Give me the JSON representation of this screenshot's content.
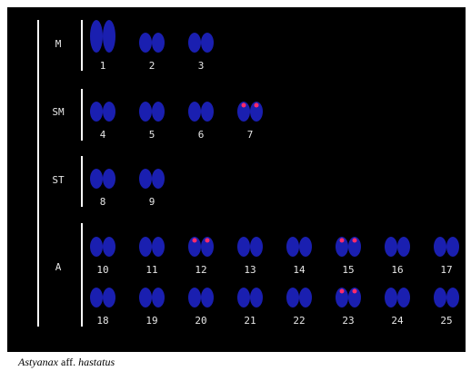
{
  "groups": [
    {
      "label": "M",
      "pairs": [
        "1",
        "2",
        "3"
      ]
    },
    {
      "label": "SM",
      "pairs": [
        "4",
        "5",
        "6",
        "7"
      ]
    },
    {
      "label": "ST",
      "pairs": [
        "8",
        "9"
      ]
    },
    {
      "label": "A",
      "pairs": [
        "10",
        "11",
        "12",
        "13",
        "14",
        "15",
        "16",
        "17",
        "18",
        "19",
        "20",
        "21",
        "22",
        "23",
        "24",
        "25"
      ]
    }
  ],
  "caption": {
    "genus": "Astyanax",
    "qualifier": "aff.",
    "species": "hastatus"
  }
}
